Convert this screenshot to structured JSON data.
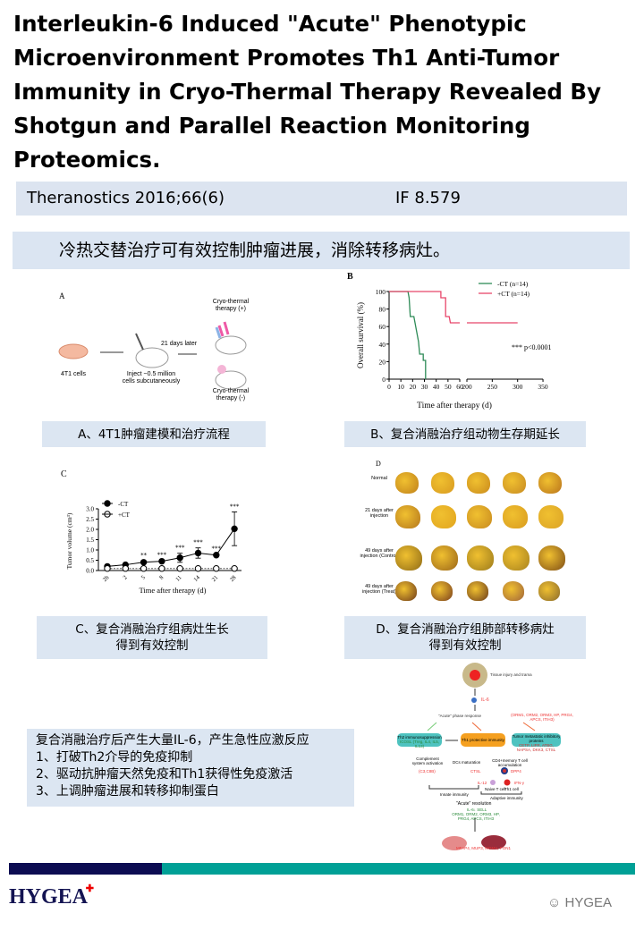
{
  "title": "Interleukin-6 Induced \"Acute\" Phenotypic Microenvironment Promotes Th1 Anti-Tumor Immunity in Cryo-Thermal Therapy Revealed By Shotgun and Parallel Reaction Monitoring Proteomics.",
  "citation": {
    "journal": "Theranostics 2016;66(6)",
    "impact_factor": "IF 8.579"
  },
  "heading": "冷热交替治疗可有效控制肿瘤进展，消除转移病灶。",
  "panel_a": {
    "letter": "A",
    "cells": "4T1 cells",
    "inject": "Inject  ~0.5 million",
    "inject2": "cells subcutaneously",
    "later": "21 days later",
    "plus": "Cryo-thermal",
    "plus2": "therapy (+)",
    "minus": "Cryo-thermal",
    "minus2": "therapy (-)",
    "caption": "A、4T1肿瘤建模和治疗流程"
  },
  "panel_b": {
    "letter": "B",
    "caption": "B、复合消融治疗组动物生存期延长"
  },
  "panel_c": {
    "letter": "C",
    "caption1": "C、复合消融治疗组病灶生长",
    "caption2": "得到有效控制"
  },
  "panel_d": {
    "letter": "D",
    "rows": [
      "Normal",
      "21 days after injection",
      "49 days after injection (Control)",
      "49 days after injection (Treat)"
    ],
    "caption1": "D、复合消融治疗组肺部转移病灶",
    "caption2": "得到有效控制"
  },
  "chart_data": [
    {
      "type": "line",
      "subtype": "kaplan-meier",
      "title": "",
      "xlabel": "Time after therapy (d)",
      "ylabel": "Overall survival (%)",
      "xticks": [
        0,
        10,
        20,
        30,
        40,
        50,
        60,
        200,
        250,
        300,
        350
      ],
      "x_axis_break": [
        60,
        200
      ],
      "ylim": [
        0,
        100
      ],
      "yticks": [
        0,
        20,
        40,
        60,
        80,
        100
      ],
      "legend": "top-right",
      "annotation": "*** p<0.0001",
      "series": [
        {
          "name": "-CT (n=14)",
          "color": "#2e8b57",
          "points": [
            [
              0,
              100
            ],
            [
              16,
              100
            ],
            [
              17,
              92.9
            ],
            [
              18,
              71.4
            ],
            [
              21,
              71.4
            ],
            [
              22,
              64.3
            ],
            [
              23,
              57.1
            ],
            [
              24,
              50
            ],
            [
              25,
              42.9
            ],
            [
              26,
              28.6
            ],
            [
              29,
              28.6
            ],
            [
              29,
              21.4
            ],
            [
              31,
              21.4
            ],
            [
              31,
              0
            ]
          ]
        },
        {
          "name": "+CT (n=14)",
          "color": "#e8466a",
          "points": [
            [
              0,
              100
            ],
            [
              44,
              100
            ],
            [
              44,
              92.9
            ],
            [
              48,
              92.9
            ],
            [
              48,
              71.4
            ],
            [
              51,
              71.4
            ],
            [
              52,
              64.3
            ],
            [
              300,
              64.3
            ]
          ]
        }
      ]
    },
    {
      "type": "line",
      "title": "",
      "xlabel": "Time after therapy (d)",
      "ylabel": "Tumor volume (cm³)",
      "categories": [
        "2h",
        "2",
        "5",
        "8",
        "11",
        "14",
        "21",
        "28"
      ],
      "ylim": [
        0,
        3.0
      ],
      "yticks": [
        "0.0",
        "0.5",
        "1.0",
        "1.5",
        "2.0",
        "2.5",
        "3.0"
      ],
      "legend": "top-left",
      "significance": [
        "",
        "",
        "**",
        "***",
        "***",
        "***",
        "***",
        "***"
      ],
      "series": [
        {
          "name": "-CT",
          "values": [
            0.2,
            0.28,
            0.4,
            0.45,
            0.62,
            0.85,
            0.75,
            2.03
          ],
          "errors": [
            0.03,
            0.04,
            0.08,
            0.05,
            0.22,
            0.25,
            0.06,
            0.82
          ]
        },
        {
          "name": "+CT",
          "values": [
            0.1,
            0.1,
            0.1,
            0.1,
            0.1,
            0.1,
            0.1,
            0.1
          ],
          "errors": [
            0,
            0,
            0,
            0,
            0,
            0,
            0,
            0
          ]
        }
      ]
    }
  ],
  "summary": {
    "line0": "复合消融治疗后产生大量IL-6，产生急性应激反应",
    "line1": "1、打破Th2介导的免疫抑制",
    "line2": "2、驱动抗肿瘤天然免疫和Th1获得性免疫激活",
    "line3": "3、上调肿瘤进展和转移抑制蛋白"
  },
  "diagram": {
    "injury": "Tissue injury and trama",
    "il6": "IL-6",
    "phase": "\"Acute\" phase response",
    "phase_proteins": "(ORM1, ORM2, ORM3, HP, PRG4, APCS, ITIH3)",
    "th2": "Th2 immunosuppression",
    "th2_sub": "ICOSL (Treg, IL4, IL5, IL13)",
    "th1": "Th1 protective immunity",
    "tumor": "Tumor metastatic inhibitory proteins",
    "tumor_sub": "CETP, LIFR, ATBG, NAPSA, DKK3, CTSL",
    "complement": "Complement system activation",
    "c3": "(C3,C8B)",
    "dcs": "DCs maturation",
    "ctsl": "CTSL",
    "cd4": "CD4+memory T cell accumulation",
    "dpp4": "DPP4",
    "il12": "IL-12",
    "naive": "Naive T cell",
    "th1cell": "Th1 cell",
    "ifn": "IFN-γ",
    "innate": "Innate immunity",
    "adaptive": "Adaptive immunity",
    "resolution": "\"Acute\" resolution",
    "res1": "IL-6↓ SELL",
    "res2": "ORM1, ORM2, ORM3, HP, PRG4, APCS, ITIH3",
    "bottom": "MFAP4, MUP3, MGMA, PON1"
  },
  "footer": {
    "logo": "HYGEA",
    "watermark": "HYGEA",
    "colors": {
      "navy": "#0c0c52",
      "teal": "#00a096"
    }
  }
}
